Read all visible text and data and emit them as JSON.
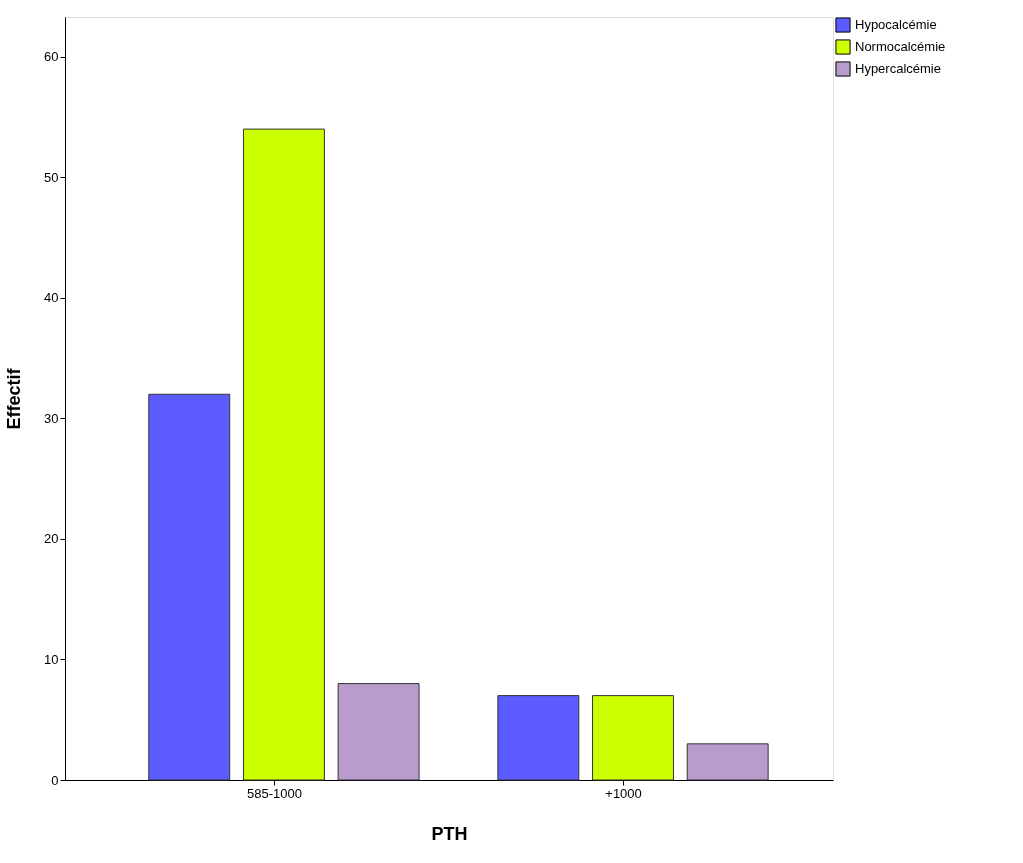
{
  "chart_data": {
    "type": "bar",
    "xlabel": "PTH",
    "ylabel": "Effectif",
    "categories": [
      "585-1000",
      "+1000"
    ],
    "series": [
      {
        "name": "Hypocalcémie",
        "color": "#5b5bff",
        "values": [
          32,
          7
        ]
      },
      {
        "name": "Normocalcémie",
        "color": "#ccff00",
        "values": [
          54,
          7
        ]
      },
      {
        "name": "Hypercalcémie",
        "color": "#b89ccc",
        "values": [
          8,
          3
        ]
      }
    ],
    "ylim": [
      0,
      63.3
    ],
    "yticks": [
      0,
      10,
      20,
      30,
      40,
      50,
      60
    ],
    "grid": false,
    "legend": "top right"
  }
}
